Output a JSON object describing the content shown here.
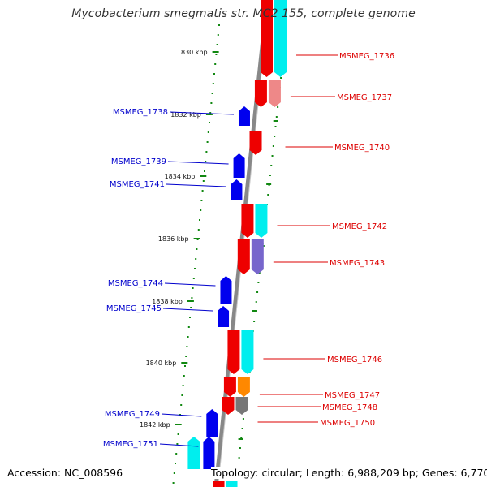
{
  "title": "Mycobacterium smegmatis str. MC2 155, complete genome",
  "footer": {
    "accession": "Accession: NC_008596",
    "stats": "Topology: circular; Length: 6,988,209 bp; Genes: 6,770"
  },
  "colors": {
    "backbone": "#888888",
    "forward_gene": "#ee0000",
    "reverse_gene": "#0000ee",
    "cds_cyan": "#00eeee",
    "cds_pink": "#ee8888",
    "cds_purple": "#7766cc",
    "cds_orange": "#ff8800",
    "cds_gray": "#777777",
    "tick_green": "#118811",
    "label_red": "#dd0000",
    "label_blue": "#0000cc"
  },
  "ticks": [
    {
      "label": "1830 kbp"
    },
    {
      "label": "1832 kbp"
    },
    {
      "label": "1834 kbp"
    },
    {
      "label": "1836 kbp"
    },
    {
      "label": "1838 kbp"
    },
    {
      "label": "1840 kbp"
    },
    {
      "label": "1842 kbp"
    }
  ],
  "genes_forward": [
    {
      "label": "MSMEG_1736",
      "cds_color": "cyan"
    },
    {
      "label": "MSMEG_1737",
      "cds_color": "pink"
    },
    {
      "label": "MSMEG_1740",
      "cds_color": "none"
    },
    {
      "label": "MSMEG_1742",
      "cds_color": "cyan"
    },
    {
      "label": "MSMEG_1743",
      "cds_color": "purple"
    },
    {
      "label": "MSMEG_1746",
      "cds_color": "cyan"
    },
    {
      "label": "MSMEG_1747",
      "cds_color": "orange"
    },
    {
      "label": "MSMEG_1748",
      "cds_color": "gray"
    },
    {
      "label": "MSMEG_1750",
      "cds_color": "none"
    }
  ],
  "genes_reverse": [
    {
      "label": "MSMEG_1738"
    },
    {
      "label": "MSMEG_1739"
    },
    {
      "label": "MSMEG_1741"
    },
    {
      "label": "MSMEG_1744"
    },
    {
      "label": "MSMEG_1745"
    },
    {
      "label": "MSMEG_1749"
    },
    {
      "label": "MSMEG_1751",
      "cds_color": "cyan"
    }
  ]
}
